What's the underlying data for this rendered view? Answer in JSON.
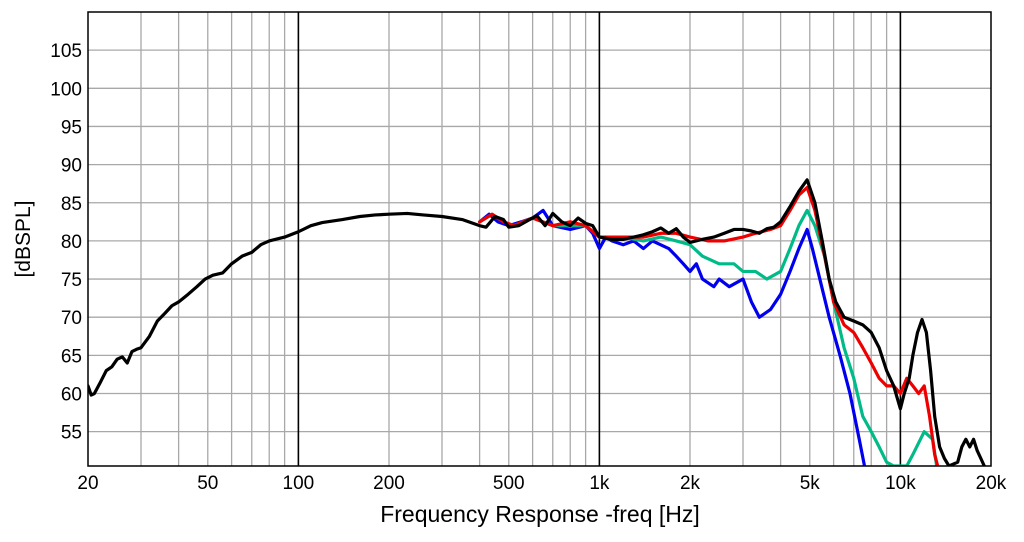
{
  "chart_data": {
    "type": "line",
    "xlabel": "Frequency Response -freq [Hz]",
    "ylabel": "[dBSPL]",
    "x_scale": "log",
    "xlim": [
      20,
      20000
    ],
    "ylim": [
      50.5,
      110
    ],
    "grid": true,
    "x_ticks": [
      {
        "value": 20,
        "label": "20"
      },
      {
        "value": 50,
        "label": "50"
      },
      {
        "value": 100,
        "label": "100"
      },
      {
        "value": 200,
        "label": "200"
      },
      {
        "value": 500,
        "label": "500"
      },
      {
        "value": 1000,
        "label": "1k"
      },
      {
        "value": 2000,
        "label": "2k"
      },
      {
        "value": 5000,
        "label": "5k"
      },
      {
        "value": 10000,
        "label": "10k"
      },
      {
        "value": 20000,
        "label": "20k"
      }
    ],
    "y_ticks": [
      {
        "value": 55,
        "label": "55"
      },
      {
        "value": 60,
        "label": "60"
      },
      {
        "value": 65,
        "label": "65"
      },
      {
        "value": 70,
        "label": "70"
      },
      {
        "value": 75,
        "label": "75"
      },
      {
        "value": 80,
        "label": "80"
      },
      {
        "value": 85,
        "label": "85"
      },
      {
        "value": 90,
        "label": "90"
      },
      {
        "value": 95,
        "label": "95"
      },
      {
        "value": 100,
        "label": "100"
      },
      {
        "value": 105,
        "label": "105"
      }
    ],
    "series": [
      {
        "color": "#0000ee",
        "points": [
          [
            400,
            82.5
          ],
          [
            430,
            83.5
          ],
          [
            460,
            82.5
          ],
          [
            500,
            82
          ],
          [
            550,
            82.5
          ],
          [
            600,
            83
          ],
          [
            650,
            84
          ],
          [
            700,
            82
          ],
          [
            800,
            81.5
          ],
          [
            900,
            82
          ],
          [
            950,
            81
          ],
          [
            1000,
            79
          ],
          [
            1050,
            80.5
          ],
          [
            1100,
            80
          ],
          [
            1200,
            79.5
          ],
          [
            1300,
            80
          ],
          [
            1400,
            79
          ],
          [
            1500,
            80
          ],
          [
            1700,
            79
          ],
          [
            1800,
            78
          ],
          [
            1900,
            77
          ],
          [
            2000,
            76
          ],
          [
            2100,
            77
          ],
          [
            2200,
            75
          ],
          [
            2400,
            74
          ],
          [
            2500,
            75
          ],
          [
            2700,
            74
          ],
          [
            3000,
            75
          ],
          [
            3200,
            72
          ],
          [
            3400,
            70
          ],
          [
            3700,
            71
          ],
          [
            4000,
            73
          ],
          [
            4300,
            76
          ],
          [
            4600,
            79
          ],
          [
            4900,
            81.5
          ],
          [
            5100,
            79
          ],
          [
            5400,
            75
          ],
          [
            5800,
            70
          ],
          [
            6300,
            65
          ],
          [
            6800,
            60
          ],
          [
            7300,
            54
          ],
          [
            7600,
            50.5
          ]
        ]
      },
      {
        "color": "#00bb88",
        "points": [
          [
            400,
            82.5
          ],
          [
            440,
            83.5
          ],
          [
            480,
            82.5
          ],
          [
            520,
            82
          ],
          [
            600,
            83
          ],
          [
            700,
            82
          ],
          [
            800,
            82
          ],
          [
            900,
            82
          ],
          [
            1000,
            80.5
          ],
          [
            1200,
            80.5
          ],
          [
            1400,
            80
          ],
          [
            1600,
            80.5
          ],
          [
            1800,
            80
          ],
          [
            2000,
            79.5
          ],
          [
            2200,
            78
          ],
          [
            2500,
            77
          ],
          [
            2800,
            77
          ],
          [
            3000,
            76
          ],
          [
            3300,
            76
          ],
          [
            3600,
            75
          ],
          [
            4000,
            76
          ],
          [
            4300,
            79
          ],
          [
            4600,
            82
          ],
          [
            4900,
            84
          ],
          [
            5200,
            82
          ],
          [
            5600,
            78
          ],
          [
            6000,
            72
          ],
          [
            6500,
            66
          ],
          [
            7000,
            62
          ],
          [
            7500,
            57
          ],
          [
            8000,
            55
          ],
          [
            8500,
            53
          ],
          [
            9000,
            51
          ],
          [
            9500,
            50.5
          ],
          [
            10500,
            50.5
          ],
          [
            11000,
            52
          ],
          [
            12000,
            55
          ],
          [
            12800,
            54
          ],
          [
            13200,
            50.5
          ]
        ]
      },
      {
        "color": "#ee0000",
        "points": [
          [
            400,
            82.5
          ],
          [
            440,
            83.5
          ],
          [
            480,
            82.5
          ],
          [
            520,
            82
          ],
          [
            600,
            83
          ],
          [
            700,
            82
          ],
          [
            800,
            82.5
          ],
          [
            900,
            82
          ],
          [
            1000,
            80.5
          ],
          [
            1200,
            80.5
          ],
          [
            1400,
            80.5
          ],
          [
            1600,
            81
          ],
          [
            1800,
            81
          ],
          [
            2000,
            80.5
          ],
          [
            2300,
            80
          ],
          [
            2600,
            80
          ],
          [
            3000,
            80.5
          ],
          [
            3300,
            81
          ],
          [
            3700,
            81.5
          ],
          [
            4000,
            82
          ],
          [
            4300,
            84
          ],
          [
            4600,
            86
          ],
          [
            4900,
            87
          ],
          [
            5200,
            84
          ],
          [
            5600,
            78
          ],
          [
            6000,
            72
          ],
          [
            6500,
            69
          ],
          [
            7000,
            68
          ],
          [
            7500,
            66
          ],
          [
            8000,
            64
          ],
          [
            8500,
            62
          ],
          [
            9000,
            61
          ],
          [
            9500,
            61
          ],
          [
            10000,
            60
          ],
          [
            10500,
            62
          ],
          [
            11000,
            61
          ],
          [
            11500,
            60
          ],
          [
            12000,
            61
          ],
          [
            12500,
            57
          ],
          [
            13000,
            52
          ],
          [
            13300,
            50.5
          ]
        ]
      },
      {
        "color": "#000000",
        "points": [
          [
            20,
            61
          ],
          [
            20.5,
            59.8
          ],
          [
            21,
            60
          ],
          [
            22,
            61.5
          ],
          [
            23,
            63
          ],
          [
            24,
            63.5
          ],
          [
            25,
            64.5
          ],
          [
            26,
            64.8
          ],
          [
            27,
            64
          ],
          [
            28,
            65.5
          ],
          [
            29,
            65.8
          ],
          [
            30,
            66
          ],
          [
            32,
            67.5
          ],
          [
            34,
            69.5
          ],
          [
            36,
            70.5
          ],
          [
            38,
            71.5
          ],
          [
            40,
            72
          ],
          [
            43,
            73
          ],
          [
            46,
            74
          ],
          [
            49,
            75
          ],
          [
            52,
            75.5
          ],
          [
            56,
            75.8
          ],
          [
            60,
            77
          ],
          [
            65,
            78
          ],
          [
            70,
            78.5
          ],
          [
            75,
            79.5
          ],
          [
            80,
            80
          ],
          [
            90,
            80.5
          ],
          [
            100,
            81.2
          ],
          [
            110,
            82
          ],
          [
            120,
            82.4
          ],
          [
            140,
            82.8
          ],
          [
            160,
            83.2
          ],
          [
            180,
            83.4
          ],
          [
            200,
            83.5
          ],
          [
            230,
            83.6
          ],
          [
            260,
            83.4
          ],
          [
            300,
            83.2
          ],
          [
            350,
            82.8
          ],
          [
            400,
            82
          ],
          [
            420,
            81.8
          ],
          [
            450,
            83.2
          ],
          [
            480,
            82.8
          ],
          [
            500,
            81.8
          ],
          [
            540,
            82
          ],
          [
            580,
            82.7
          ],
          [
            620,
            83.3
          ],
          [
            660,
            82
          ],
          [
            700,
            83.6
          ],
          [
            750,
            82.5
          ],
          [
            800,
            82
          ],
          [
            850,
            83
          ],
          [
            900,
            82.3
          ],
          [
            950,
            82
          ],
          [
            1000,
            80.5
          ],
          [
            1100,
            80.2
          ],
          [
            1200,
            80.2
          ],
          [
            1300,
            80.5
          ],
          [
            1400,
            80.8
          ],
          [
            1500,
            81.2
          ],
          [
            1600,
            81.7
          ],
          [
            1700,
            81
          ],
          [
            1800,
            81.6
          ],
          [
            1900,
            80.5
          ],
          [
            2000,
            79.8
          ],
          [
            2200,
            80.2
          ],
          [
            2400,
            80.5
          ],
          [
            2600,
            81
          ],
          [
            2800,
            81.5
          ],
          [
            3000,
            81.5
          ],
          [
            3200,
            81.3
          ],
          [
            3400,
            81
          ],
          [
            3600,
            81.6
          ],
          [
            3800,
            81.8
          ],
          [
            4000,
            82.5
          ],
          [
            4300,
            84.5
          ],
          [
            4600,
            86.5
          ],
          [
            4900,
            88
          ],
          [
            5200,
            85
          ],
          [
            5500,
            80
          ],
          [
            5800,
            75
          ],
          [
            6100,
            72
          ],
          [
            6500,
            70
          ],
          [
            7000,
            69.5
          ],
          [
            7500,
            69
          ],
          [
            8000,
            68
          ],
          [
            8500,
            66
          ],
          [
            9000,
            63
          ],
          [
            9500,
            61
          ],
          [
            10000,
            58
          ],
          [
            10300,
            60
          ],
          [
            10700,
            62
          ],
          [
            11000,
            65
          ],
          [
            11400,
            68
          ],
          [
            11800,
            69.7
          ],
          [
            12200,
            68
          ],
          [
            12600,
            63
          ],
          [
            13000,
            57
          ],
          [
            13500,
            53
          ],
          [
            14000,
            51.5
          ],
          [
            14500,
            50.5
          ],
          [
            15500,
            51
          ],
          [
            16000,
            53
          ],
          [
            16500,
            54
          ],
          [
            17000,
            53
          ],
          [
            17500,
            54
          ],
          [
            18000,
            52.5
          ],
          [
            18500,
            51.5
          ],
          [
            19000,
            50.5
          ]
        ]
      }
    ]
  }
}
